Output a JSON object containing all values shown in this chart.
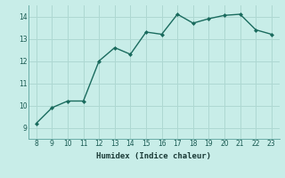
{
  "x": [
    8,
    9,
    10,
    11,
    12,
    13,
    14,
    15,
    16,
    17,
    18,
    19,
    20,
    21,
    22,
    23
  ],
  "y": [
    9.2,
    9.9,
    10.2,
    10.2,
    12.0,
    12.6,
    12.3,
    13.3,
    13.2,
    14.1,
    13.7,
    13.9,
    14.05,
    14.1,
    13.4,
    13.2
  ],
  "xlabel": "Humidex (Indice chaleur)",
  "ylim": [
    8.5,
    14.5
  ],
  "xlim": [
    7.5,
    23.5
  ],
  "yticks": [
    9,
    10,
    11,
    12,
    13,
    14
  ],
  "xticks": [
    8,
    9,
    10,
    11,
    12,
    13,
    14,
    15,
    16,
    17,
    18,
    19,
    20,
    21,
    22,
    23
  ],
  "line_color": "#1a6b5e",
  "marker_color": "#1a6b5e",
  "bg_color": "#c8ede8",
  "grid_color": "#aed8d2",
  "tick_label_color": "#1a5a52",
  "xlabel_color": "#1a3a36",
  "border_color": "#6aada6"
}
